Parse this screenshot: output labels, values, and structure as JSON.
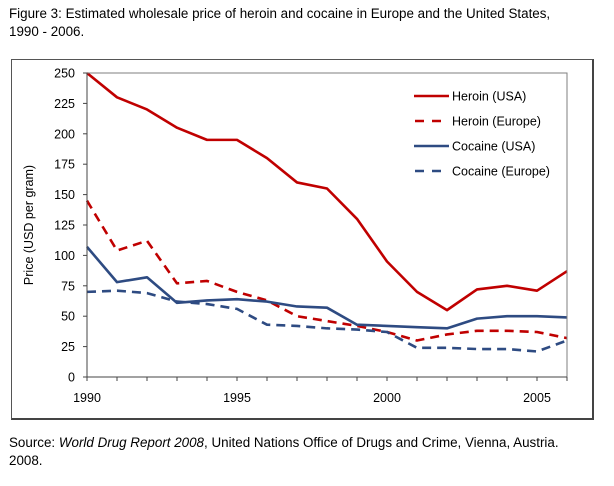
{
  "caption": {
    "line1": "Figure 3: Estimated wholesale price of heroin and cocaine in Europe and the United States,",
    "line2": "1990 - 2006."
  },
  "source": {
    "prefix": "Source: ",
    "title": "World Drug Report 2008",
    "rest": ", United Nations Office of Drugs and Crime, Vienna, Austria.",
    "line2": "2008."
  },
  "chart_data": {
    "type": "line",
    "title": "Figure 3: Estimated wholesale price of heroin and cocaine in Europe and the United States, 1990 - 2006.",
    "xlabel": "",
    "ylabel": "Price (USD per gram)",
    "x": [
      1990,
      1991,
      1992,
      1993,
      1994,
      1995,
      1996,
      1997,
      1998,
      1999,
      2000,
      2001,
      2002,
      2003,
      2004,
      2005,
      2006
    ],
    "xlim": [
      1990,
      2006
    ],
    "ylim": [
      0,
      250
    ],
    "xticks": [
      1990,
      1991,
      1992,
      1993,
      1994,
      1995,
      1996,
      1997,
      1998,
      1999,
      2000,
      2001,
      2002,
      2003,
      2004,
      2005,
      2006
    ],
    "xtick_labels": [
      {
        "value": 1990,
        "label": "1990"
      },
      {
        "value": 1995,
        "label": "1995"
      },
      {
        "value": 2000,
        "label": "2000"
      },
      {
        "value": 2005,
        "label": "2005"
      }
    ],
    "yticks": [
      0,
      25,
      50,
      75,
      100,
      125,
      150,
      175,
      200,
      225,
      250
    ],
    "ytick_labels": [
      "0",
      "25",
      "50",
      "75",
      "100",
      "125",
      "150",
      "175",
      "200",
      "225",
      "250"
    ],
    "grid": false,
    "legend_position": "top-right",
    "series": [
      {
        "name": "Heroin (USA)",
        "color": "#c00000",
        "style": "solid",
        "values": [
          250,
          230,
          220,
          205,
          195,
          195,
          180,
          160,
          155,
          130,
          95,
          70,
          55,
          72,
          75,
          71,
          87
        ]
      },
      {
        "name": "Heroin (Europe)",
        "color": "#c00000",
        "style": "dashed",
        "values": [
          145,
          104,
          112,
          77,
          79,
          70,
          63,
          50,
          46,
          42,
          37,
          30,
          35,
          38,
          38,
          37,
          32
        ]
      },
      {
        "name": "Cocaine (USA)",
        "color": "#2e4b82",
        "style": "solid",
        "values": [
          107,
          78,
          82,
          61,
          63,
          64,
          62,
          58,
          57,
          43,
          42,
          41,
          40,
          48,
          50,
          50,
          49
        ]
      },
      {
        "name": "Cocaine (Europe)",
        "color": "#2e4b82",
        "style": "dashed",
        "values": [
          70,
          71,
          69,
          62,
          60,
          56,
          43,
          42,
          40,
          39,
          37,
          24,
          24,
          23,
          23,
          21,
          30
        ]
      }
    ]
  }
}
